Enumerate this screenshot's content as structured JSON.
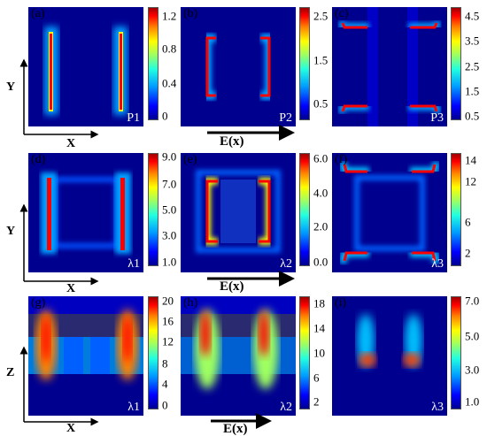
{
  "panels": [
    {
      "label": "(a)",
      "corner": "P1",
      "ticks": [
        "1.2",
        "0.8",
        "0.4",
        "0"
      ]
    },
    {
      "label": "(b)",
      "corner": "P2",
      "ticks": [
        "2.5",
        "1.5",
        "0.5"
      ]
    },
    {
      "label": "(c)",
      "corner": "P3",
      "ticks": [
        "4.5",
        "3.5",
        "2.5",
        "1.5",
        "0.5"
      ]
    },
    {
      "label": "(d)",
      "corner": "λ1",
      "ticks": [
        "9.0",
        "7.0",
        "5.0",
        "3.0",
        "1.0"
      ]
    },
    {
      "label": "(e)",
      "corner": "λ2",
      "ticks": [
        "6.0",
        "4.0",
        "2.0",
        "0.0"
      ]
    },
    {
      "label": "(f)",
      "corner": "λ3",
      "ticks": [
        "14",
        "12",
        "6",
        "2"
      ]
    },
    {
      "label": "(g)",
      "corner": "λ1",
      "ticks": [
        "20",
        "16",
        "12",
        "8",
        "4",
        "0"
      ]
    },
    {
      "label": "(h)",
      "corner": "λ2",
      "ticks": [
        "18",
        "14",
        "10",
        "6",
        "2"
      ]
    },
    {
      "label": "(i)",
      "corner": "λ3",
      "ticks": [
        "7.0",
        "5.0",
        "3.0",
        "1.0"
      ]
    }
  ],
  "axes": {
    "row1": {
      "vertical": "Y",
      "horizontal": "X"
    },
    "row2": {
      "vertical": "Y",
      "horizontal": "X"
    },
    "row3": {
      "vertical": "Z",
      "horizontal": "X"
    }
  },
  "efield_label": "E(x)",
  "colors": {
    "low": "#00008f",
    "mid": "#22ffe0",
    "high": "#ff0000"
  }
}
